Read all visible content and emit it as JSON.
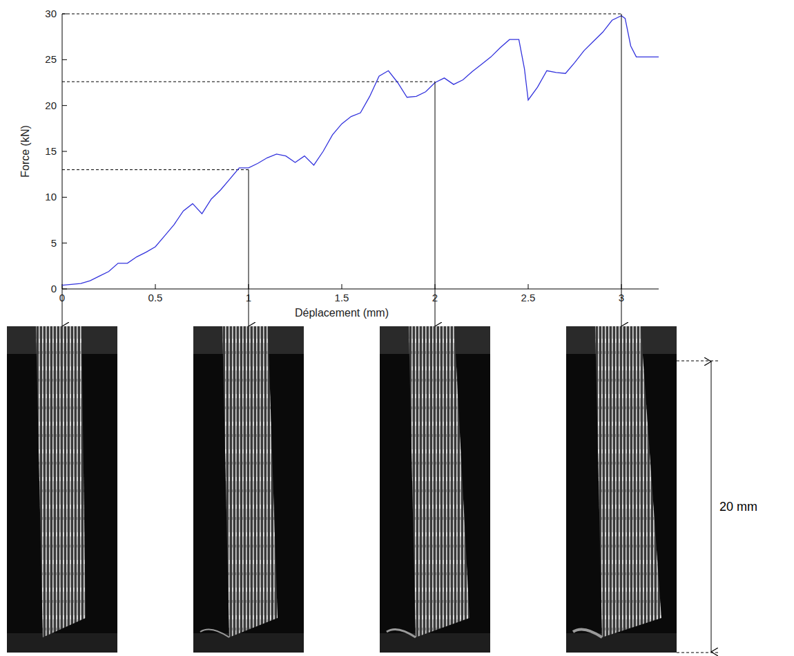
{
  "chart_data": {
    "type": "line",
    "x_label": "Déplacement (mm)",
    "y_label": "Force (kN)",
    "x": [
      0,
      0.05,
      0.1,
      0.15,
      0.2,
      0.25,
      0.3,
      0.35,
      0.4,
      0.45,
      0.5,
      0.55,
      0.6,
      0.65,
      0.7,
      0.75,
      0.8,
      0.85,
      0.9,
      0.95,
      1.0,
      1.05,
      1.1,
      1.15,
      1.2,
      1.25,
      1.3,
      1.35,
      1.4,
      1.45,
      1.5,
      1.55,
      1.6,
      1.65,
      1.7,
      1.75,
      1.8,
      1.85,
      1.9,
      1.95,
      2.0,
      2.05,
      2.1,
      2.15,
      2.2,
      2.25,
      2.3,
      2.35,
      2.4,
      2.45,
      2.48,
      2.5,
      2.55,
      2.6,
      2.65,
      2.7,
      2.75,
      2.8,
      2.85,
      2.9,
      2.95,
      3.0,
      3.02,
      3.05,
      3.08,
      3.15,
      3.2
    ],
    "values": [
      0.4,
      0.5,
      0.6,
      0.9,
      1.4,
      1.9,
      2.8,
      2.8,
      3.5,
      4.0,
      4.6,
      5.8,
      7.0,
      8.5,
      9.3,
      8.2,
      9.8,
      10.8,
      12.0,
      13.2,
      13.2,
      13.7,
      14.3,
      14.7,
      14.5,
      13.8,
      14.5,
      13.5,
      15.0,
      16.8,
      18.0,
      18.8,
      19.2,
      21.0,
      23.2,
      23.8,
      22.5,
      20.9,
      21.0,
      21.5,
      22.5,
      23.0,
      22.3,
      22.8,
      23.7,
      24.5,
      25.3,
      26.3,
      27.2,
      27.2,
      24.0,
      20.6,
      22.0,
      23.8,
      23.6,
      23.5,
      24.7,
      26.0,
      27.0,
      28.0,
      29.3,
      29.8,
      29.5,
      26.5,
      25.3,
      25.3,
      25.3
    ],
    "color": "#3333dd",
    "xlim": [
      0,
      3.2
    ],
    "ylim": [
      0,
      30
    ],
    "xticks": [
      0,
      0.5,
      1,
      1.5,
      2,
      2.5,
      3
    ],
    "yticks": [
      0,
      5,
      10,
      15,
      20,
      25,
      30
    ],
    "grid": false,
    "markers": [
      {
        "x": 1,
        "y": 13
      },
      {
        "x": 2,
        "y": 22.6
      },
      {
        "x": 3,
        "y": 30
      }
    ],
    "image_x": [
      0,
      1,
      2,
      3
    ],
    "scale_bar_label": "20 mm"
  }
}
